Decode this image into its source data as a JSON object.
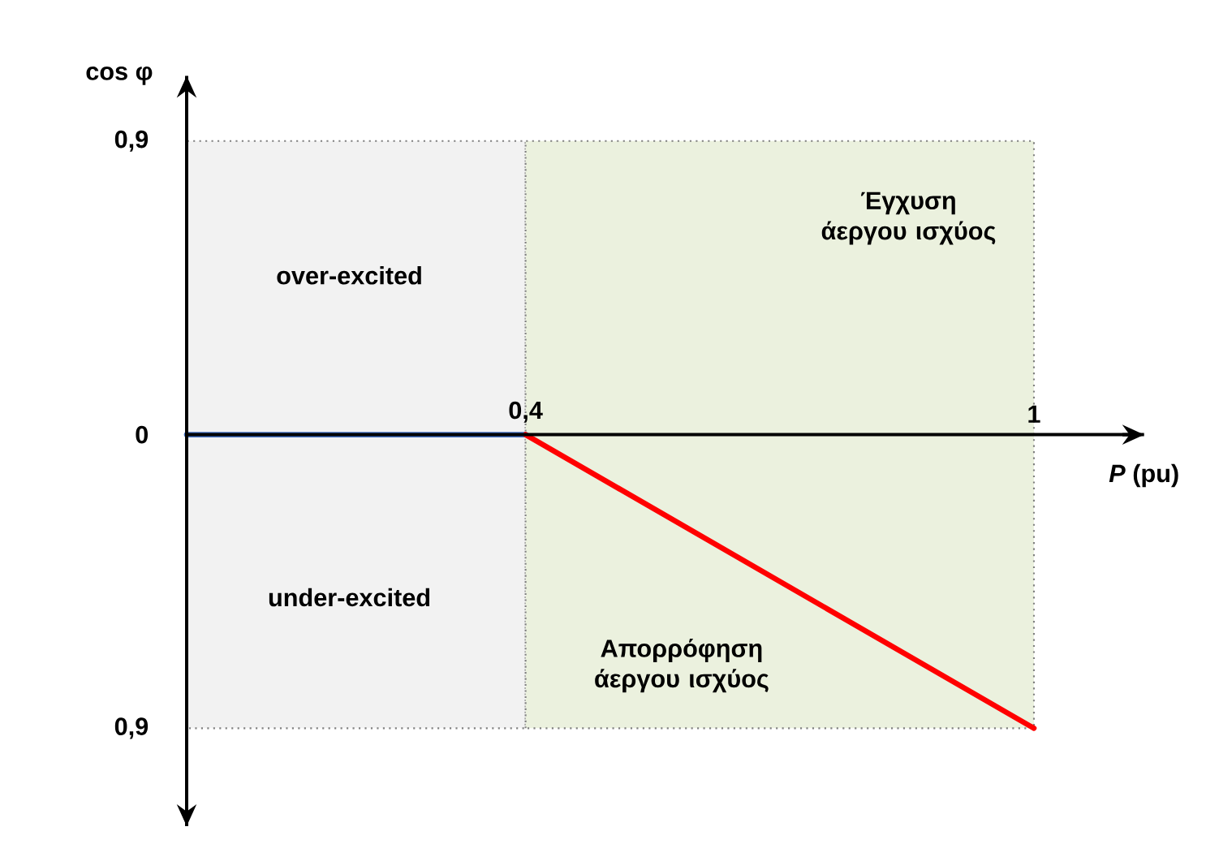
{
  "chart_data": {
    "type": "line",
    "xlabel": "*P* (pu)",
    "ylabel": "cos φ",
    "xlim": [
      0,
      1.13
    ],
    "ylim": [
      -1.2,
      1.1
    ],
    "xticks": [
      {
        "value": 0.4,
        "label": "0,4"
      },
      1
    ],
    "yticks": [
      {
        "value": -0.9,
        "label": "0,9"
      },
      0,
      {
        "value": 0.9,
        "label": "0,9"
      }
    ],
    "series": [
      {
        "x": [
          0,
          0.4
        ],
        "values": [
          0,
          0
        ],
        "color": "#4472c4"
      },
      {
        "x": [
          0.4,
          1
        ],
        "values": [
          0,
          -0.9
        ],
        "color": "#ff0000"
      }
    ],
    "bands": [
      {
        "axis": "x",
        "from": 0,
        "to": 0.4,
        "color": "#f2f2f2"
      },
      {
        "axis": "x",
        "from": 0.4,
        "to": 1,
        "color": "#ebf1de"
      }
    ],
    "annotations": [
      "over-excited",
      "under-excited",
      "Έγχυση άεργου ισχύος",
      "Απορρόφηση άεργου ισχύος"
    ]
  }
}
